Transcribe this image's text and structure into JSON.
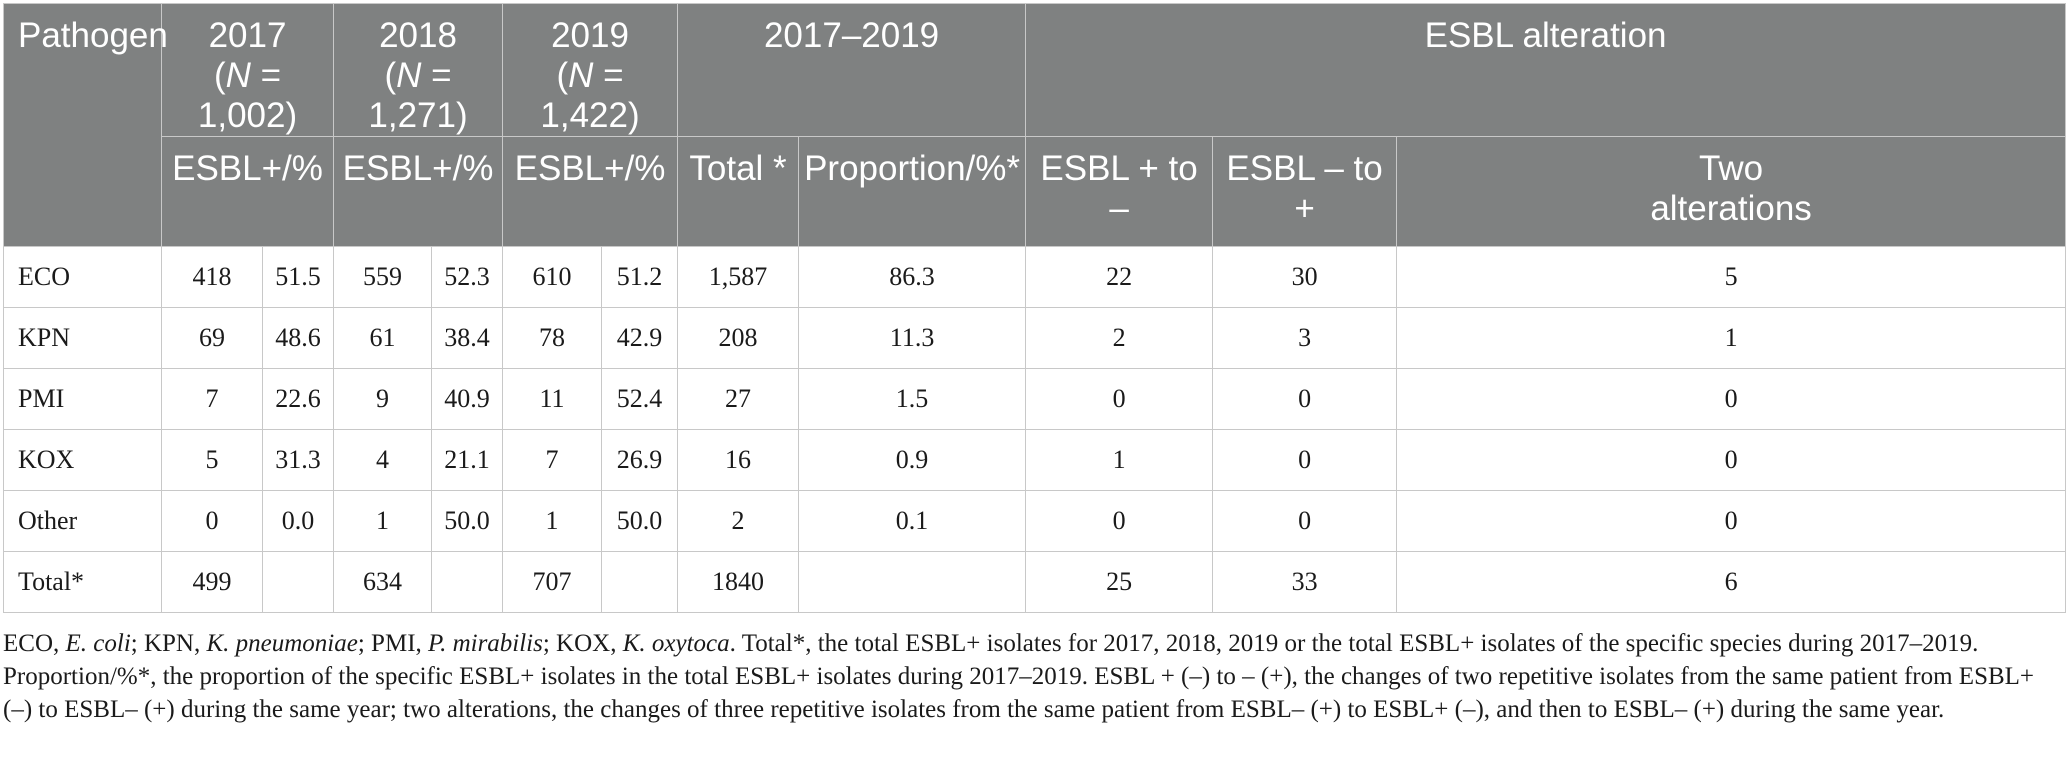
{
  "header": {
    "pathogen": "Pathogen",
    "years": [
      {
        "year": "2017",
        "n_label": "N",
        "n_value": " = 1,002)"
      },
      {
        "year": "2018",
        "n_label": "N",
        "n_value": " = 1,271)"
      },
      {
        "year": "2019",
        "n_label": "N",
        "n_value": " = 1,422)"
      }
    ],
    "range": "2017–2019",
    "alteration": "ESBL alteration",
    "esbl_pct": "ESBL+/%",
    "total": "Total *",
    "proportion": "Proportion/%*",
    "plus_to_minus": "ESBL + to –",
    "minus_to_plus": "ESBL – to +",
    "two_alt_line1": "Two",
    "two_alt_line2": "alterations"
  },
  "rows": [
    {
      "pathogen": "ECO",
      "c2017": "418",
      "p2017": "51.5",
      "c2018": "559",
      "p2018": "52.3",
      "c2019": "610",
      "p2019": "51.2",
      "total": "1,587",
      "proportion": "86.3",
      "pm": "22",
      "mp": "30",
      "two": "5"
    },
    {
      "pathogen": "KPN",
      "c2017": "69",
      "p2017": "48.6",
      "c2018": "61",
      "p2018": "38.4",
      "c2019": "78",
      "p2019": "42.9",
      "total": "208",
      "proportion": "11.3",
      "pm": "2",
      "mp": "3",
      "two": "1"
    },
    {
      "pathogen": "PMI",
      "c2017": "7",
      "p2017": "22.6",
      "c2018": "9",
      "p2018": "40.9",
      "c2019": "11",
      "p2019": "52.4",
      "total": "27",
      "proportion": "1.5",
      "pm": "0",
      "mp": "0",
      "two": "0"
    },
    {
      "pathogen": "KOX",
      "c2017": "5",
      "p2017": "31.3",
      "c2018": "4",
      "p2018": "21.1",
      "c2019": "7",
      "p2019": "26.9",
      "total": "16",
      "proportion": "0.9",
      "pm": "1",
      "mp": "0",
      "two": "0"
    },
    {
      "pathogen": "Other",
      "c2017": "0",
      "p2017": "0.0",
      "c2018": "1",
      "p2018": "50.0",
      "c2019": "1",
      "p2019": "50.0",
      "total": "2",
      "proportion": "0.1",
      "pm": "0",
      "mp": "0",
      "two": "0"
    },
    {
      "pathogen": "Total*",
      "c2017": "499",
      "p2017": "",
      "c2018": "634",
      "p2018": "",
      "c2019": "707",
      "p2019": "",
      "total": "1840",
      "proportion": "",
      "pm": "25",
      "mp": "33",
      "two": "6"
    }
  ],
  "notes": {
    "abbr_eco": "ECO, ",
    "eco_full": "E. coli",
    "abbr_kpn": "; KPN, ",
    "kpn_full": "K. pneumoniae",
    "abbr_pmi": "; PMI, ",
    "pmi_full": "P. mirabilis",
    "abbr_kox": "; KOX, ",
    "kox_full": "K. oxytoca",
    "rest": ". Total*, the total ESBL+ isolates for 2017, 2018, 2019 or the total ESBL+ isolates of the specific species during 2017–2019. Proportion/%*, the proportion of the specific ESBL+ isolates in the total ESBL+ isolates during 2017–2019. ESBL + (–) to – (+), the changes of two repetitive isolates from the same patient from ESBL+ (–) to ESBL– (+) during the same year; two alterations, the changes of three repetitive isolates from the same patient from ESBL– (+) to ESBL+ (–), and then to ESBL– (+) during the same year."
  }
}
